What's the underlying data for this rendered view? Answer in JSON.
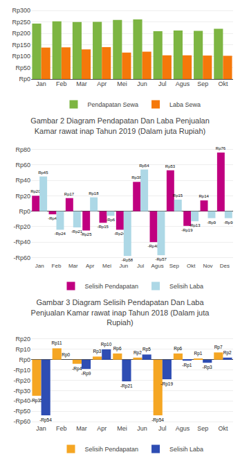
{
  "chart_data": [
    {
      "type": "bar",
      "categories": [
        "Jan",
        "Feb",
        "Mar",
        "Apr",
        "Mei",
        "Jun",
        "Jul",
        "Agus",
        "Sep",
        "Okt"
      ],
      "series": [
        {
          "name": "Pendapatan Sewa",
          "color": "#7db542",
          "values": [
            243,
            253,
            250,
            251,
            259,
            261,
            210,
            213,
            211,
            220
          ]
        },
        {
          "name": "Laba Sewa",
          "color": "#f5780a",
          "values": [
            138,
            139,
            130,
            140,
            116,
            120,
            104,
            104,
            103,
            102
          ]
        }
      ],
      "ylim": [
        0,
        310
      ],
      "yticks": [
        {
          "value": 0,
          "label": "Rp0"
        },
        {
          "value": 50,
          "label": "Rp50"
        },
        {
          "value": 100,
          "label": "Rp100"
        },
        {
          "value": 150,
          "label": "Rp150"
        },
        {
          "value": 200,
          "label": "Rp200"
        },
        {
          "value": 250,
          "label": "Rp250"
        },
        {
          "value": 300,
          "label": "Rp300"
        }
      ],
      "grid": true,
      "legend": "bottom"
    },
    {
      "type": "bar",
      "title": "Gambar 2 Diagram Pendapatan Dan Laba Penjualan\nKamar rawat inap Tahun 2019 (Dalam juta Rupiah)",
      "categories": [
        "Jan",
        "Feb",
        "Mar",
        "Apr",
        "Mei",
        "Jun",
        "Jul",
        "Agus",
        "Sep",
        "Okt",
        "Nov",
        "Des"
      ],
      "series": [
        {
          "name": "Selisih Pendapatan",
          "color": "#c00080",
          "values": [
            20,
            -4,
            17,
            -25,
            -15,
            -24,
            38,
            -40,
            53,
            -19,
            14,
            76
          ],
          "value_labels": [
            "Rp20",
            "-Rp4",
            "Rp17",
            "-Rp25",
            "-Rp15",
            "-Rp24",
            "Rp38",
            "-Rp40",
            "Rp53",
            "-Rp19",
            "Rp14",
            "Rp76"
          ]
        },
        {
          "name": "Selisih Laba",
          "color": "#add8e6",
          "values": [
            45,
            -24,
            -21,
            18,
            -6,
            -58,
            54,
            -57,
            15,
            -13,
            -9,
            -9
          ],
          "value_labels": [
            "Rp45",
            "-Rp24",
            "-Rp21",
            "Rp18",
            "-Rp6",
            "-Rp58",
            "Rp54",
            "-Rp57",
            "Rp15",
            "-Rp13",
            "-Rp9",
            "-Rp9"
          ]
        }
      ],
      "ylim": [
        -65,
        85
      ],
      "yticks": [
        {
          "value": -60,
          "label": "-Rp60"
        },
        {
          "value": -40,
          "label": "-Rp40"
        },
        {
          "value": -20,
          "label": "-Rp20"
        },
        {
          "value": 0,
          "label": "Rp0"
        },
        {
          "value": 20,
          "label": "Rp20"
        },
        {
          "value": 40,
          "label": "Rp40"
        },
        {
          "value": 60,
          "label": "Rp60"
        },
        {
          "value": 80,
          "label": "Rp80"
        }
      ],
      "grid": true,
      "legend": "bottom",
      "data_labels": true
    },
    {
      "type": "bar",
      "title": "Gambar 3 Diagram Selisih Pendapatan Dan Laba\nPenjualan Kamar rawat inap Tahun 2018 (Dalam juta\nRupiah)",
      "categories": [
        "Jan",
        "Feb",
        "Mar",
        "Apr",
        "Mei",
        "Jun",
        "Jul",
        "Agus",
        "Sep",
        "Okt"
      ],
      "series": [
        {
          "name": "Selisih Pendapatan",
          "color": "#f5a623",
          "values": [
            -35,
            11,
            -4,
            3,
            6,
            2,
            -54,
            6,
            1,
            7
          ],
          "value_labels": [
            "-Rp35",
            "Rp11",
            "-Rp4",
            "Rp3",
            "Rp6",
            "Rp2",
            "-Rp54",
            "Rp6",
            "Rp1",
            "Rp7"
          ]
        },
        {
          "name": "Selisih Laba",
          "color": "#2e4db3",
          "values": [
            -54,
            0,
            -9,
            10,
            -21,
            5,
            -19,
            -1,
            -3,
            2
          ],
          "value_labels": [
            "-Rp54",
            "Rp0",
            "-Rp9",
            "Rp10",
            "-Rp21",
            "Rp5",
            "-Rp19",
            "-Rp1",
            "-Rp3",
            "Rp2"
          ]
        }
      ],
      "ylim": [
        -62,
        22
      ],
      "yticks": [
        {
          "value": -60,
          "label": "-Rp60"
        },
        {
          "value": -50,
          "label": "-Rp50"
        },
        {
          "value": -40,
          "label": "-Rp40"
        },
        {
          "value": -30,
          "label": "-Rp30"
        },
        {
          "value": -20,
          "label": "-Rp20"
        },
        {
          "value": -10,
          "label": "-Rp10"
        },
        {
          "value": 0,
          "label": "Rp0"
        },
        {
          "value": 10,
          "label": "Rp10"
        },
        {
          "value": 20,
          "label": "Rp20"
        }
      ],
      "grid": true,
      "legend": "bottom",
      "data_labels": true
    }
  ]
}
